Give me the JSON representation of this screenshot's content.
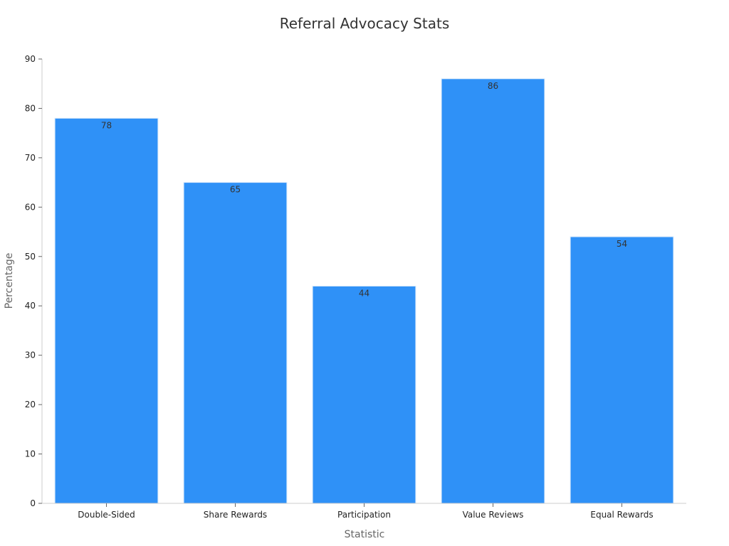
{
  "chart_data": {
    "type": "bar",
    "title": "Referral Advocacy Stats",
    "xlabel": "Statistic",
    "ylabel": "Percentage",
    "categories": [
      "Double-Sided",
      "Share Rewards",
      "Participation",
      "Value Reviews",
      "Equal Rewards"
    ],
    "values": [
      78,
      65,
      44,
      86,
      54
    ],
    "ylim": [
      0,
      90
    ],
    "yticks": [
      0,
      10,
      20,
      30,
      40,
      50,
      60,
      70,
      80,
      90
    ],
    "grid": false,
    "legend": "none",
    "bar_color": "#2f91f7"
  }
}
